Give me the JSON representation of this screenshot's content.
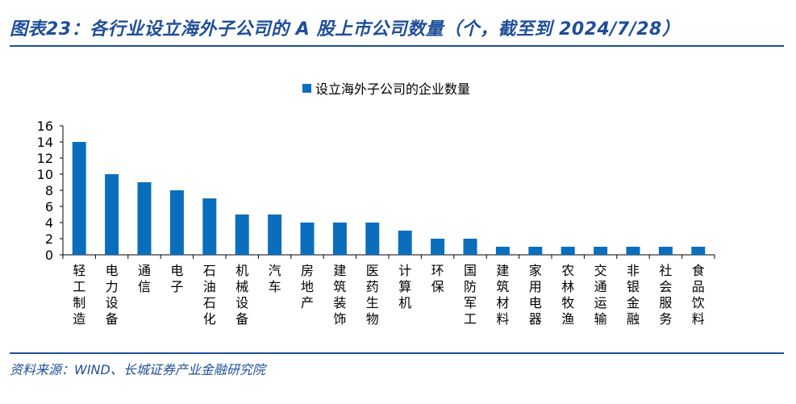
{
  "header": {
    "title": "图表23：各行业设立海外子公司的 A 股上市公司数量（个，截至到 2024/7/28）"
  },
  "footer": {
    "source": "资料来源：WIND、长城证券产业金融研究院"
  },
  "colors": {
    "accent": "#1f4e9a",
    "bar": "#0a6ebd"
  },
  "chart_data": {
    "type": "bar",
    "categories": [
      "轻工制造",
      "电力设备",
      "通信",
      "电子",
      "石油石化",
      "机械设备",
      "汽车",
      "房地产",
      "建筑装饰",
      "医药生物",
      "计算机",
      "环保",
      "国防军工",
      "建筑材料",
      "家用电器",
      "农林牧渔",
      "交通运输",
      "非银金融",
      "社会服务",
      "食品饮料"
    ],
    "series": [
      {
        "name": "设立海外子公司的企业数量",
        "values": [
          14,
          10,
          9,
          8,
          7,
          5,
          5,
          4,
          4,
          4,
          3,
          2,
          2,
          1,
          1,
          1,
          1,
          1,
          1,
          1
        ]
      }
    ],
    "ylim": [
      0,
      16
    ],
    "yticks": [
      0,
      2,
      4,
      6,
      8,
      10,
      12,
      14,
      16
    ],
    "xlabel": "",
    "ylabel": "",
    "grid": false,
    "legend": "top-center"
  }
}
